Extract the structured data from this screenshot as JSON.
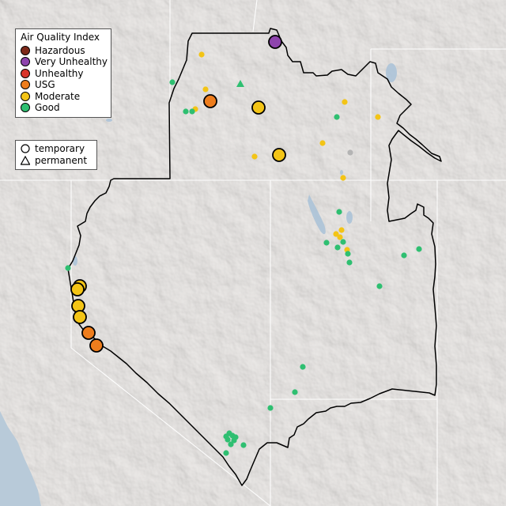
{
  "map": {
    "legend_title": "Air Quality Index",
    "aqi_categories": [
      {
        "label": "Hazardous",
        "color": "#7e2a1a"
      },
      {
        "label": "Very Unhealthy",
        "color": "#8e44ad"
      },
      {
        "label": "Unhealthy",
        "color": "#d9352b"
      },
      {
        "label": "USG",
        "color": "#ee7d1d"
      },
      {
        "label": "Moderate",
        "color": "#f3c416"
      },
      {
        "label": "Good",
        "color": "#2fbf71"
      }
    ],
    "monitor_types": [
      {
        "label": "temporary",
        "shape": "circle-icon"
      },
      {
        "label": "permanent",
        "shape": "triangle-icon"
      }
    ],
    "no_data_color": "#b4b4b4"
  }
}
